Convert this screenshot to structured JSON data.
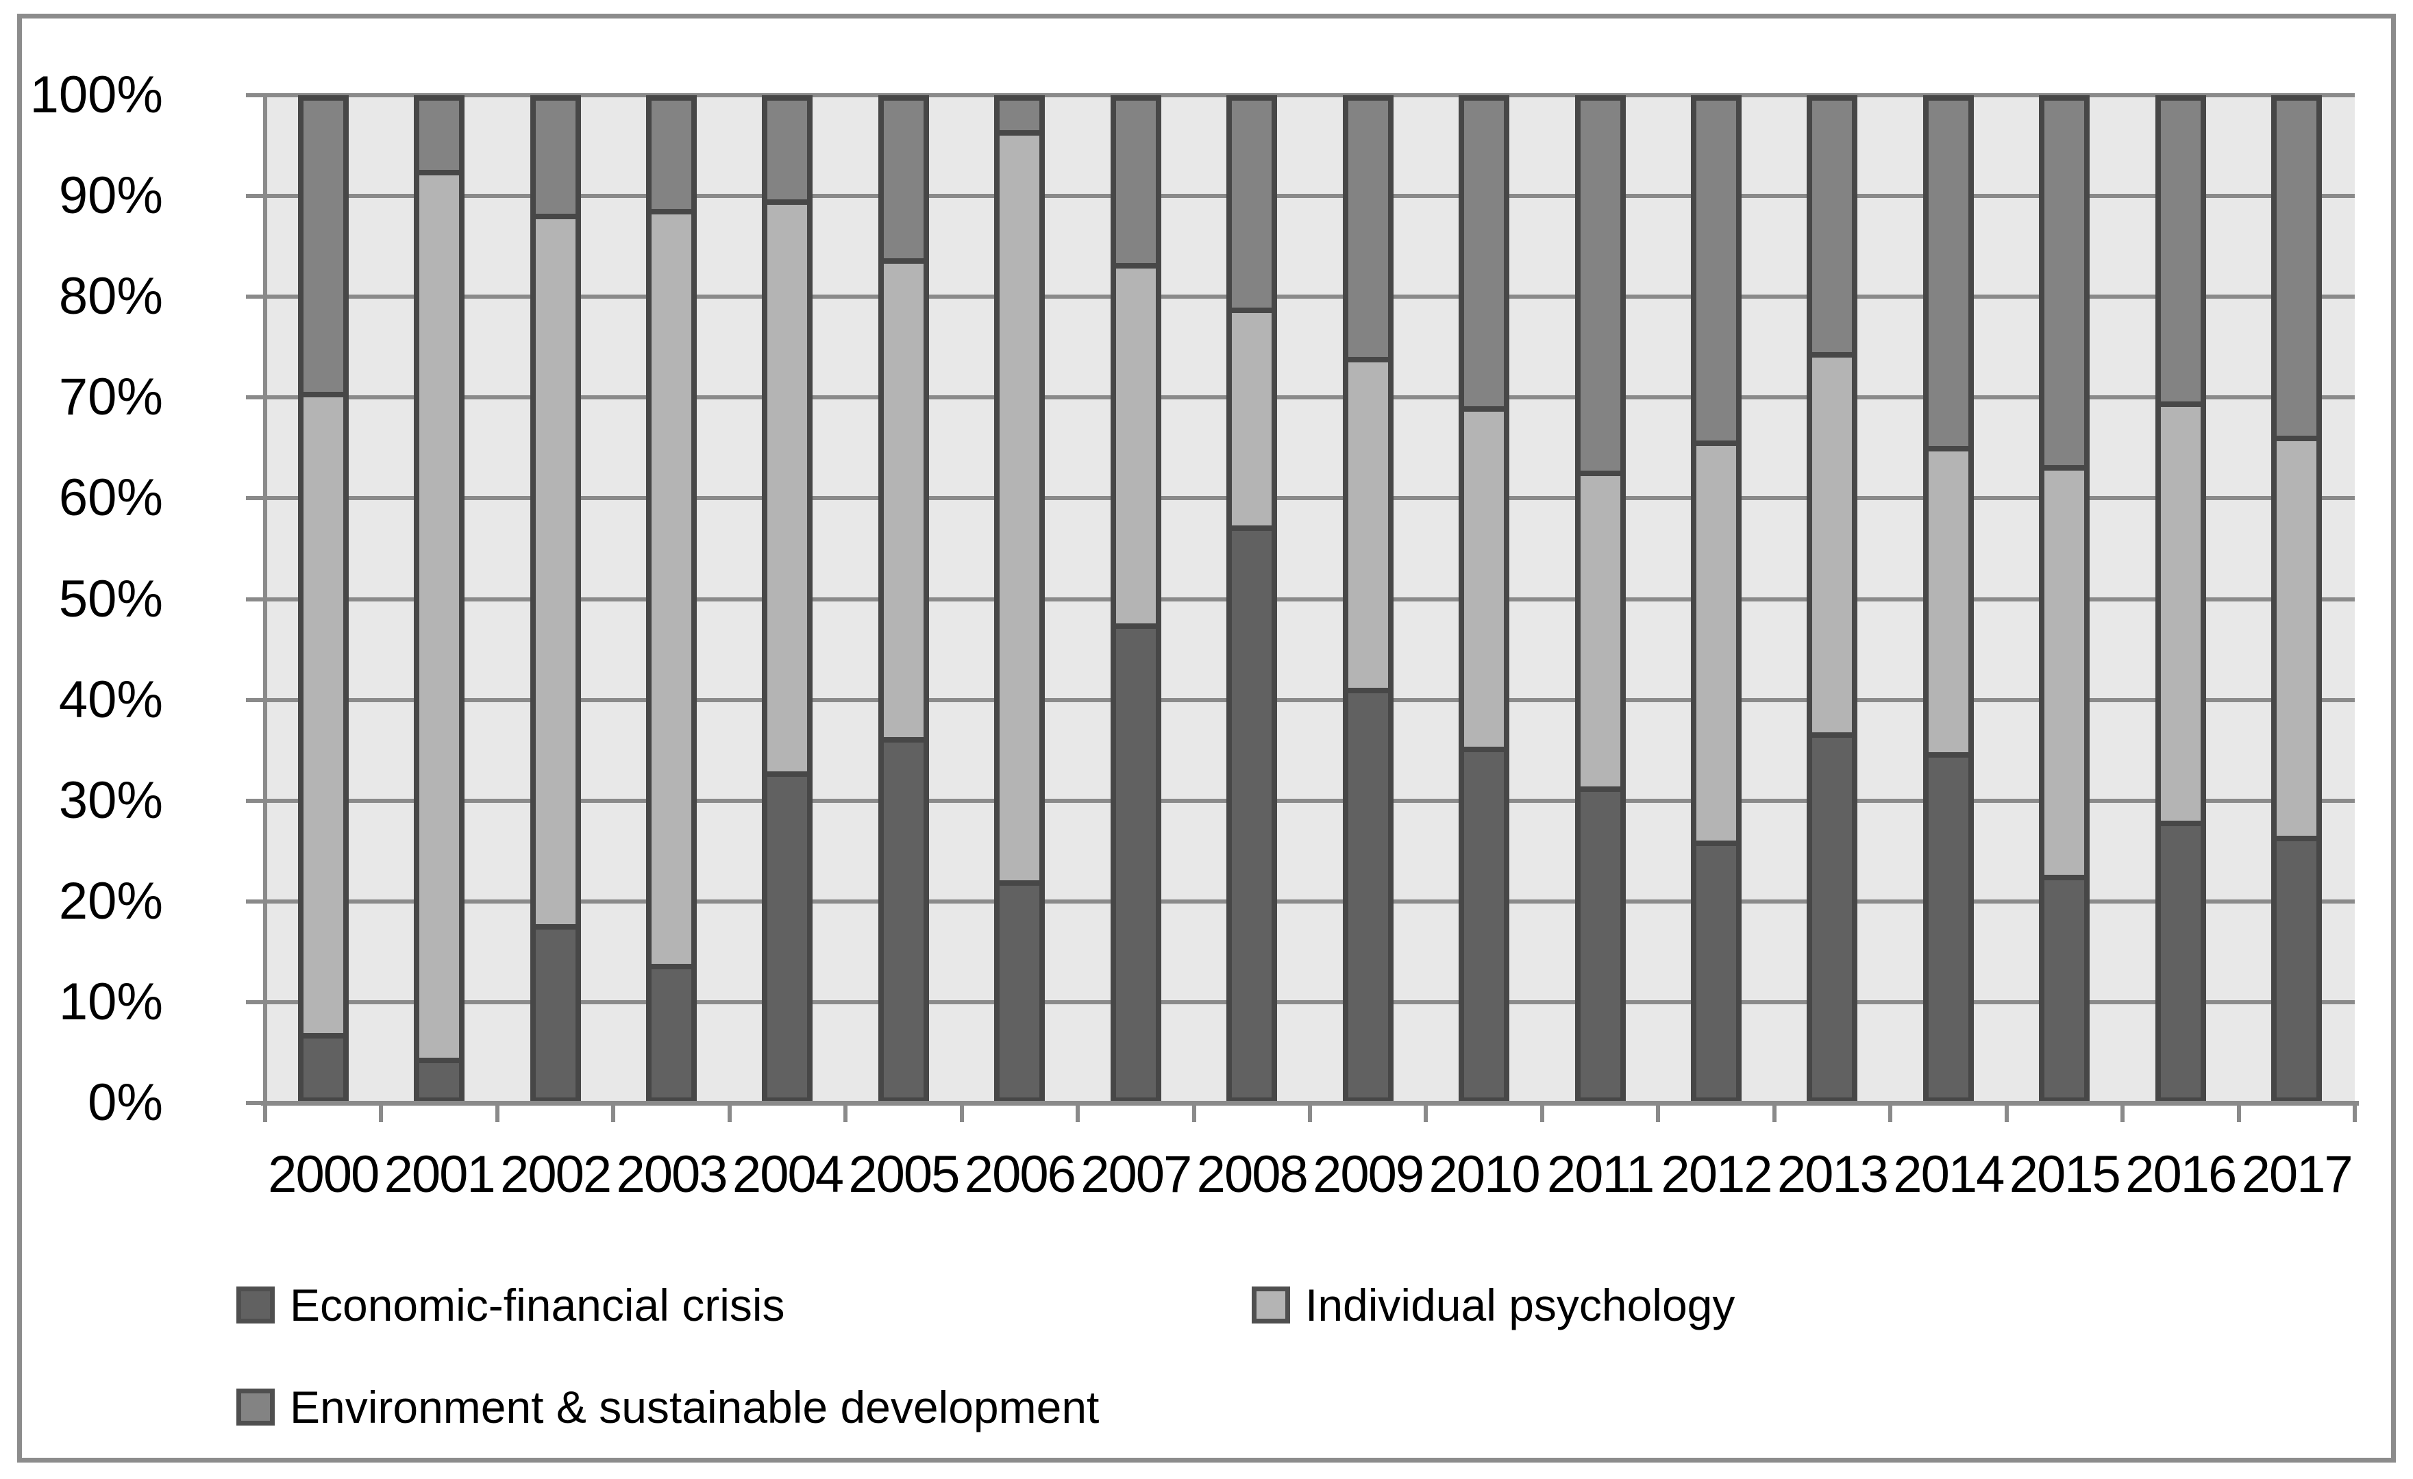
{
  "chart_data": {
    "type": "bar",
    "stacked": true,
    "percent_stacked": true,
    "title": "",
    "xlabel": "",
    "ylabel": "",
    "ylim": [
      0,
      100
    ],
    "grid": true,
    "legend_position": "bottom",
    "y_tick_labels": [
      "0%",
      "10%",
      "20%",
      "30%",
      "40%",
      "50%",
      "60%",
      "70%",
      "80%",
      "90%",
      "100%"
    ],
    "categories": [
      "2000",
      "2001",
      "2002",
      "2003",
      "2004",
      "2005",
      "2006",
      "2007",
      "2008",
      "2009",
      "2010",
      "2011",
      "2012",
      "2013",
      "2014",
      "2015",
      "2016",
      "2017"
    ],
    "series": [
      {
        "name": "Economic-financial crisis",
        "color": "#616161",
        "values": [
          6,
          3.5,
          17,
          13,
          32.5,
          36,
          21.5,
          47.5,
          57.5,
          41,
          35,
          31,
          25.5,
          36.5,
          34.5,
          22,
          27.5,
          26
        ]
      },
      {
        "name": "Individual psychology",
        "color": "#B4B4B4",
        "values": [
          64.5,
          89.5,
          71.5,
          76,
          57.5,
          48,
          75.5,
          36,
          21.5,
          33,
          34,
          31.5,
          40,
          38,
          30.5,
          41,
          42,
          40
        ]
      },
      {
        "name": "Environment & sustainable development",
        "color": "#838383",
        "values": [
          29.5,
          7,
          11.5,
          11,
          10,
          16,
          3,
          16.5,
          21,
          26,
          31,
          37.5,
          34.5,
          25.5,
          35,
          37,
          30.5,
          34
        ]
      }
    ]
  },
  "styles": {
    "plot_background": "#E8E8E8",
    "gridline_color": "#8A8A8A",
    "axis_color": "#8A8A8A",
    "bar_border_color": "#474747",
    "frame_border_color": "#8C8C8C",
    "text_color": "#000000"
  }
}
